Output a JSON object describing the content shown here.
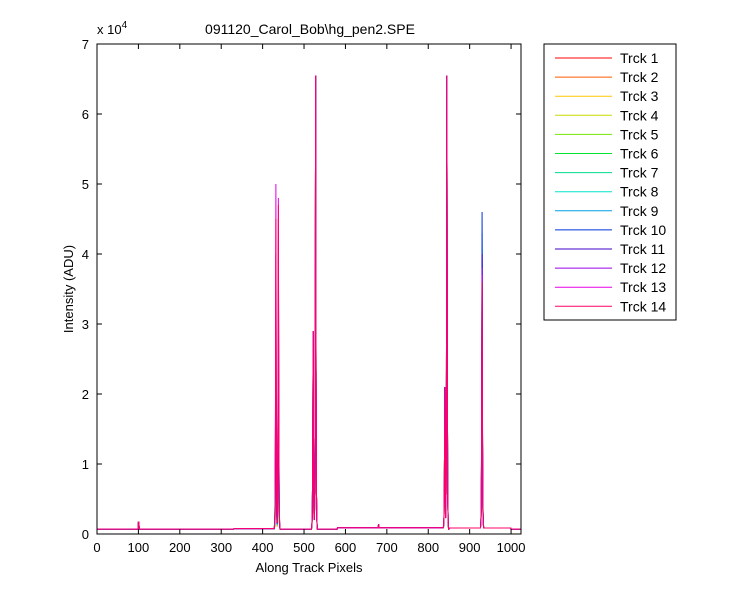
{
  "chart_data": {
    "type": "line",
    "title": "091120_Carol_Bob\\hg_pen2.SPE",
    "xlabel": "Along Track Pixels",
    "ylabel": "Intensity (ADU)",
    "y_multiplier_label": "x 10",
    "y_multiplier_exponent": "4",
    "xlim": [
      0,
      1024
    ],
    "ylim": [
      0,
      70000
    ],
    "x_ticks": [
      0,
      100,
      200,
      300,
      400,
      500,
      600,
      700,
      800,
      900,
      1000
    ],
    "y_ticks": [
      0,
      10000,
      20000,
      30000,
      40000,
      50000,
      60000,
      70000
    ],
    "x_tick_labels": [
      "0",
      "100",
      "200",
      "300",
      "400",
      "500",
      "600",
      "700",
      "800",
      "900",
      "1000"
    ],
    "y_tick_labels": [
      "0",
      "1",
      "2",
      "3",
      "4",
      "5",
      "6",
      "7"
    ],
    "grid": false,
    "legend_position": "outside-right",
    "baseline": 700,
    "series": [
      {
        "name": "Trck 1",
        "color": "#ff0000",
        "peaks": [
          [
            432,
            17000
          ],
          [
            438,
            20000
          ],
          [
            522,
            20000
          ],
          [
            528,
            65500
          ],
          [
            840,
            20000
          ],
          [
            845,
            65500
          ],
          [
            930,
            30000
          ]
        ]
      },
      {
        "name": "Trck 2",
        "color": "#ff5a00",
        "peaks": [
          [
            432,
            18000
          ],
          [
            438,
            22000
          ],
          [
            522,
            22000
          ],
          [
            528,
            65500
          ],
          [
            840,
            21000
          ],
          [
            845,
            65500
          ],
          [
            930,
            33000
          ]
        ]
      },
      {
        "name": "Trck 3",
        "color": "#ffc800",
        "peaks": [
          [
            432,
            19000
          ],
          [
            438,
            24000
          ],
          [
            522,
            26000
          ],
          [
            528,
            65500
          ],
          [
            840,
            21000
          ],
          [
            845,
            65500
          ],
          [
            930,
            35000
          ]
        ]
      },
      {
        "name": "Trck 4",
        "color": "#c8dc00",
        "peaks": [
          [
            432,
            20000
          ],
          [
            438,
            25000
          ],
          [
            522,
            28000
          ],
          [
            528,
            65500
          ],
          [
            840,
            21000
          ],
          [
            845,
            65500
          ],
          [
            930,
            36000
          ]
        ]
      },
      {
        "name": "Trck 5",
        "color": "#78e600",
        "peaks": [
          [
            432,
            21000
          ],
          [
            438,
            27000
          ],
          [
            522,
            29000
          ],
          [
            528,
            65500
          ],
          [
            840,
            21000
          ],
          [
            845,
            65500
          ],
          [
            930,
            37000
          ]
        ]
      },
      {
        "name": "Trck 6",
        "color": "#00e632",
        "peaks": [
          [
            432,
            22000
          ],
          [
            438,
            29000
          ],
          [
            522,
            29000
          ],
          [
            528,
            65500
          ],
          [
            840,
            21000
          ],
          [
            845,
            65500
          ],
          [
            930,
            38000
          ]
        ]
      },
      {
        "name": "Trck 7",
        "color": "#00dc8c",
        "peaks": [
          [
            432,
            24000
          ],
          [
            438,
            31000
          ],
          [
            522,
            29000
          ],
          [
            528,
            65500
          ],
          [
            840,
            21000
          ],
          [
            845,
            65500
          ],
          [
            930,
            40000
          ]
        ]
      },
      {
        "name": "Trck 8",
        "color": "#00e6c8",
        "peaks": [
          [
            432,
            26000
          ],
          [
            438,
            33000
          ],
          [
            522,
            29000
          ],
          [
            528,
            65500
          ],
          [
            840,
            21000
          ],
          [
            845,
            65500
          ],
          [
            930,
            41000
          ]
        ]
      },
      {
        "name": "Trck 9",
        "color": "#00a0e6",
        "peaks": [
          [
            432,
            28000
          ],
          [
            438,
            35000
          ],
          [
            522,
            29000
          ],
          [
            528,
            65500
          ],
          [
            840,
            21000
          ],
          [
            845,
            65500
          ],
          [
            930,
            43000
          ]
        ]
      },
      {
        "name": "Trck 10",
        "color": "#0032dc",
        "peaks": [
          [
            432,
            30000
          ],
          [
            438,
            39000
          ],
          [
            522,
            29000
          ],
          [
            528,
            65500
          ],
          [
            840,
            21000
          ],
          [
            845,
            65500
          ],
          [
            930,
            46000
          ]
        ]
      },
      {
        "name": "Trck 11",
        "color": "#3c00c8",
        "peaks": [
          [
            432,
            35000
          ],
          [
            438,
            42000
          ],
          [
            522,
            29000
          ],
          [
            528,
            65500
          ],
          [
            840,
            21000
          ],
          [
            845,
            65500
          ],
          [
            930,
            40000
          ]
        ]
      },
      {
        "name": "Trck 12",
        "color": "#9600e6",
        "peaks": [
          [
            432,
            40000
          ],
          [
            438,
            45000
          ],
          [
            522,
            29000
          ],
          [
            528,
            65500
          ],
          [
            840,
            21000
          ],
          [
            845,
            65500
          ],
          [
            930,
            38000
          ]
        ]
      },
      {
        "name": "Trck 13",
        "color": "#e600e6",
        "peaks": [
          [
            432,
            50000
          ],
          [
            438,
            48000
          ],
          [
            522,
            29000
          ],
          [
            528,
            65500
          ],
          [
            840,
            21000
          ],
          [
            845,
            65500
          ],
          [
            930,
            37000
          ]
        ]
      },
      {
        "name": "Trck 14",
        "color": "#ff0064",
        "peaks": [
          [
            432,
            45000
          ],
          [
            438,
            47000
          ],
          [
            522,
            29000
          ],
          [
            528,
            65500
          ],
          [
            840,
            21000
          ],
          [
            845,
            65500
          ],
          [
            930,
            36000
          ]
        ]
      }
    ]
  }
}
